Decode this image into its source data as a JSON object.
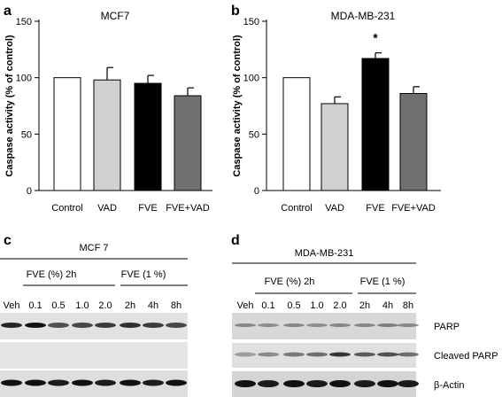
{
  "panels": {
    "a": "a",
    "b": "b",
    "c": "c",
    "d": "d"
  },
  "chart_data": [
    {
      "type": "bar",
      "title": "MCF7",
      "ylabel": "Caspase activity (% of control)",
      "categories": [
        "Control",
        "VAD",
        "FVE",
        "FVE+VAD"
      ],
      "values": [
        100,
        98,
        95,
        84
      ],
      "errors": [
        0,
        11,
        7,
        7
      ],
      "bar_colors": [
        "#ffffff",
        "#d0d0d0",
        "#000000",
        "#707070"
      ],
      "ylim": [
        0,
        150
      ],
      "yticks": [
        0,
        50,
        100,
        150
      ],
      "annotations": []
    },
    {
      "type": "bar",
      "title": "MDA-MB-231",
      "ylabel": "Caspase activity (% of control)",
      "categories": [
        "Control",
        "VAD",
        "FVE",
        "FVE+VAD"
      ],
      "values": [
        100,
        77,
        117,
        86
      ],
      "errors": [
        0,
        6,
        5,
        6
      ],
      "bar_colors": [
        "#ffffff",
        "#d0d0d0",
        "#000000",
        "#707070"
      ],
      "ylim": [
        0,
        150
      ],
      "yticks": [
        0,
        50,
        100,
        150
      ],
      "annotations": [
        {
          "category": "FVE",
          "text": "*"
        }
      ]
    }
  ],
  "blots": {
    "c": {
      "title": "MCF 7",
      "group1": "FVE (%) 2h",
      "group2": "FVE (1 %)",
      "lanes": [
        "Veh",
        "0.1",
        "0.5",
        "1.0",
        "2.0",
        "2h",
        "4h",
        "8h"
      ]
    },
    "d": {
      "title": "MDA-MB-231",
      "group1": "FVE (%) 2h",
      "group2": "FVE (1 %)",
      "lanes": [
        "Veh",
        "0.1",
        "0.5",
        "1.0",
        "2.0",
        "2h",
        "4h",
        "8h"
      ],
      "row_labels": [
        "PARP",
        "Cleaved PARP",
        "β-Actin"
      ]
    }
  }
}
